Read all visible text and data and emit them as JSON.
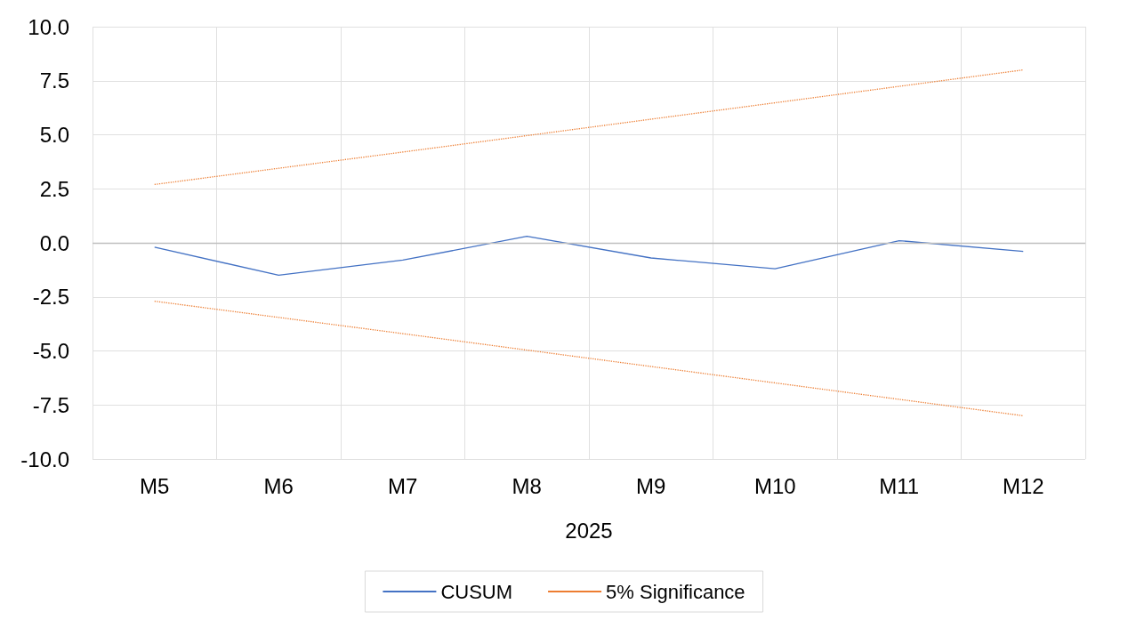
{
  "chart_data": {
    "type": "line",
    "xlabel": "2025",
    "categories": [
      "M5",
      "M6",
      "M7",
      "M8",
      "M9",
      "M10",
      "M11",
      "M12"
    ],
    "series": [
      {
        "name": "CUSUM",
        "color": "#4472c4",
        "values": [
          -0.2,
          -1.5,
          -0.8,
          0.3,
          -0.7,
          -1.2,
          0.1,
          -0.4
        ]
      },
      {
        "name": "5% Significance",
        "color": "#ed7d31",
        "line_style": "dotted",
        "values": [
          2.7,
          3.45,
          4.2,
          4.96,
          5.72,
          6.48,
          7.24,
          8.0
        ]
      },
      {
        "color": "#ed7d31",
        "line_style": "dotted",
        "values": [
          -2.7,
          -3.45,
          -4.2,
          -4.96,
          -5.72,
          -6.48,
          -7.24,
          -8.0
        ]
      }
    ],
    "ylim": [
      -10,
      10
    ],
    "yticks": [
      {
        "value": -10,
        "label": "-10.0"
      },
      {
        "value": -7.5,
        "label": "-7.5"
      },
      {
        "value": -5,
        "label": "-5.0"
      },
      {
        "value": -2.5,
        "label": "-2.5"
      },
      {
        "value": 0,
        "label": "0.0"
      },
      {
        "value": 2.5,
        "label": "2.5"
      },
      {
        "value": 5,
        "label": "5.0"
      },
      {
        "value": 7.5,
        "label": "7.5"
      },
      {
        "value": 10,
        "label": "10.0"
      }
    ],
    "ref_lines": [
      {
        "axis": "y",
        "value": 0,
        "color": "#bfbfbf"
      }
    ],
    "grid": true,
    "legend": "bottom",
    "marker": "none"
  }
}
